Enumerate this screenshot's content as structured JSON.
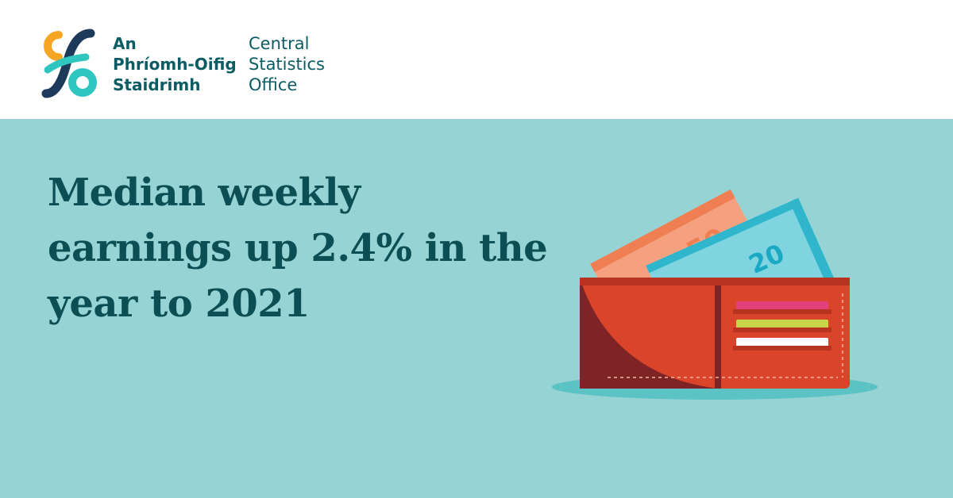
{
  "brand": {
    "irish_name_lines": [
      "An",
      "Phríomh-Oifig",
      "Staidrimh"
    ],
    "english_name_lines": [
      "Central",
      "Statistics",
      "Office"
    ],
    "icon": "cso-logo-mark",
    "colors": {
      "teal": "#2fc6c0",
      "orange": "#f6a623",
      "navy": "#1e3a5a",
      "text": "#0b5c63"
    }
  },
  "headline": "Median weekly earnings up 2.4% in the year to 2021",
  "illustration": {
    "icon": "wallet-with-banknotes-icon",
    "notes": [
      "50",
      "20"
    ],
    "colors": {
      "wallet": "#d9442a",
      "note50": "#f5a07e",
      "note20": "#7fd4df",
      "background": "#96d3d4"
    }
  }
}
